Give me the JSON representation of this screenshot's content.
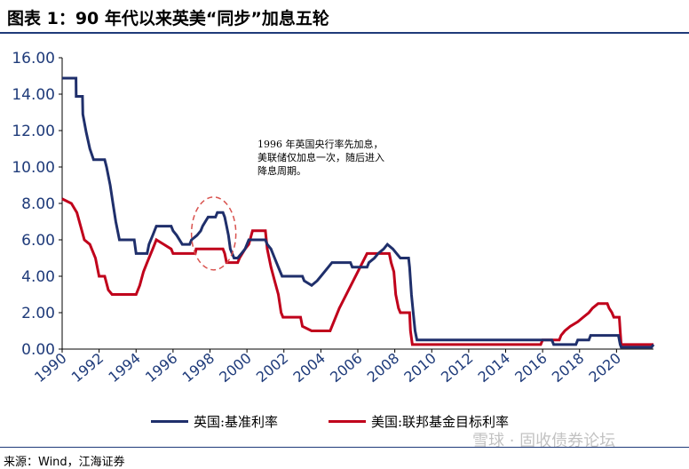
{
  "figure": {
    "title": "图表 1：90 年代以来英美“同步”加息五轮",
    "source": "来源：Wind，江海证券",
    "watermark": "雪球 · 固收债券论坛"
  },
  "annotation": {
    "text": "1996 年英国央行率先加息，美联储仅加息一次，随后进入降息周期。"
  },
  "colors": {
    "uk": "#1f2f6b",
    "us": "#c0001b",
    "ellipse": "#d9534f"
  },
  "chart_data": {
    "type": "line",
    "title": "",
    "xlabel": "",
    "ylabel": "",
    "xlim": [
      1990,
      2022
    ],
    "ylim": [
      0,
      16
    ],
    "x_ticks": [
      "1990",
      "1992",
      "1994",
      "1996",
      "1998",
      "2000",
      "2002",
      "2004",
      "2006",
      "2008",
      "2010",
      "2012",
      "2014",
      "2016",
      "2018",
      "2020"
    ],
    "y_ticks": [
      "0.00",
      "2.00",
      "4.00",
      "6.00",
      "8.00",
      "10.00",
      "12.00",
      "14.00",
      "16.00"
    ],
    "grid": false,
    "legend": "bottom",
    "series": [
      {
        "name": "英国:基准利率",
        "color": "#1f2f6b",
        "points": [
          [
            1990.0,
            14.88
          ],
          [
            1990.75,
            14.88
          ],
          [
            1990.76,
            13.88
          ],
          [
            1991.1,
            13.88
          ],
          [
            1991.12,
            12.9
          ],
          [
            1991.3,
            11.9
          ],
          [
            1991.5,
            11.0
          ],
          [
            1991.7,
            10.4
          ],
          [
            1992.3,
            10.4
          ],
          [
            1992.4,
            10.0
          ],
          [
            1992.6,
            9.0
          ],
          [
            1992.75,
            8.0
          ],
          [
            1992.9,
            7.0
          ],
          [
            1993.1,
            6.0
          ],
          [
            1993.9,
            6.0
          ],
          [
            1994.0,
            5.25
          ],
          [
            1994.6,
            5.25
          ],
          [
            1994.7,
            5.75
          ],
          [
            1994.9,
            6.25
          ],
          [
            1995.1,
            6.75
          ],
          [
            1995.9,
            6.75
          ],
          [
            1996.0,
            6.5
          ],
          [
            1996.2,
            6.25
          ],
          [
            1996.5,
            5.75
          ],
          [
            1996.9,
            5.75
          ],
          [
            1997.0,
            6.0
          ],
          [
            1997.3,
            6.25
          ],
          [
            1997.5,
            6.5
          ],
          [
            1997.6,
            6.75
          ],
          [
            1997.9,
            7.25
          ],
          [
            1998.3,
            7.25
          ],
          [
            1998.4,
            7.5
          ],
          [
            1998.7,
            7.5
          ],
          [
            1998.8,
            7.25
          ],
          [
            1998.9,
            6.75
          ],
          [
            1999.0,
            6.25
          ],
          [
            1999.1,
            5.5
          ],
          [
            1999.3,
            5.0
          ],
          [
            1999.5,
            5.0
          ],
          [
            1999.7,
            5.25
          ],
          [
            1999.9,
            5.5
          ],
          [
            2000.1,
            6.0
          ],
          [
            2000.2,
            6.0
          ],
          [
            2001.0,
            6.0
          ],
          [
            2001.1,
            5.75
          ],
          [
            2001.3,
            5.5
          ],
          [
            2001.5,
            5.0
          ],
          [
            2001.7,
            4.5
          ],
          [
            2001.9,
            4.0
          ],
          [
            2003.0,
            4.0
          ],
          [
            2003.1,
            3.75
          ],
          [
            2003.5,
            3.5
          ],
          [
            2003.8,
            3.75
          ],
          [
            2004.0,
            4.0
          ],
          [
            2004.4,
            4.5
          ],
          [
            2004.6,
            4.75
          ],
          [
            2005.6,
            4.75
          ],
          [
            2005.7,
            4.5
          ],
          [
            2006.5,
            4.5
          ],
          [
            2006.6,
            4.75
          ],
          [
            2006.9,
            5.0
          ],
          [
            2007.1,
            5.25
          ],
          [
            2007.4,
            5.5
          ],
          [
            2007.6,
            5.75
          ],
          [
            2007.9,
            5.5
          ],
          [
            2008.1,
            5.25
          ],
          [
            2008.3,
            5.0
          ],
          [
            2008.75,
            5.0
          ],
          [
            2008.8,
            4.5
          ],
          [
            2008.9,
            3.0
          ],
          [
            2009.0,
            2.0
          ],
          [
            2009.1,
            1.0
          ],
          [
            2009.2,
            0.5
          ],
          [
            2016.5,
            0.5
          ],
          [
            2016.6,
            0.25
          ],
          [
            2017.8,
            0.25
          ],
          [
            2017.9,
            0.5
          ],
          [
            2018.5,
            0.5
          ],
          [
            2018.6,
            0.75
          ],
          [
            2020.1,
            0.75
          ],
          [
            2020.2,
            0.25
          ],
          [
            2020.25,
            0.1
          ],
          [
            2021.9,
            0.1
          ],
          [
            2022.0,
            0.25
          ]
        ]
      },
      {
        "name": "美国:联邦基金目标利率",
        "color": "#c0001b",
        "points": [
          [
            1990.0,
            8.25
          ],
          [
            1990.5,
            8.0
          ],
          [
            1990.8,
            7.5
          ],
          [
            1991.0,
            6.75
          ],
          [
            1991.2,
            6.0
          ],
          [
            1991.5,
            5.75
          ],
          [
            1991.8,
            5.0
          ],
          [
            1992.0,
            4.0
          ],
          [
            1992.3,
            4.0
          ],
          [
            1992.5,
            3.25
          ],
          [
            1992.7,
            3.0
          ],
          [
            1994.0,
            3.0
          ],
          [
            1994.2,
            3.5
          ],
          [
            1994.4,
            4.25
          ],
          [
            1994.6,
            4.75
          ],
          [
            1994.9,
            5.5
          ],
          [
            1995.1,
            6.0
          ],
          [
            1995.5,
            5.75
          ],
          [
            1995.9,
            5.5
          ],
          [
            1996.0,
            5.25
          ],
          [
            1997.2,
            5.25
          ],
          [
            1997.25,
            5.5
          ],
          [
            1998.7,
            5.5
          ],
          [
            1998.8,
            5.25
          ],
          [
            1998.9,
            4.75
          ],
          [
            1999.5,
            4.75
          ],
          [
            1999.6,
            5.0
          ],
          [
            1999.9,
            5.5
          ],
          [
            2000.1,
            5.75
          ],
          [
            2000.3,
            6.5
          ],
          [
            2001.0,
            6.5
          ],
          [
            2001.1,
            5.5
          ],
          [
            2001.3,
            4.5
          ],
          [
            2001.5,
            3.75
          ],
          [
            2001.7,
            3.0
          ],
          [
            2001.85,
            2.0
          ],
          [
            2001.95,
            1.75
          ],
          [
            2002.9,
            1.75
          ],
          [
            2003.0,
            1.25
          ],
          [
            2003.5,
            1.0
          ],
          [
            2004.5,
            1.0
          ],
          [
            2005.0,
            2.25
          ],
          [
            2005.5,
            3.25
          ],
          [
            2006.0,
            4.25
          ],
          [
            2006.5,
            5.25
          ],
          [
            2007.7,
            5.25
          ],
          [
            2007.8,
            4.75
          ],
          [
            2007.95,
            4.25
          ],
          [
            2008.05,
            3.0
          ],
          [
            2008.2,
            2.25
          ],
          [
            2008.3,
            2.0
          ],
          [
            2008.8,
            2.0
          ],
          [
            2008.85,
            1.0
          ],
          [
            2008.95,
            0.25
          ],
          [
            2015.9,
            0.25
          ],
          [
            2016.0,
            0.5
          ],
          [
            2016.9,
            0.5
          ],
          [
            2017.0,
            0.75
          ],
          [
            2017.2,
            1.0
          ],
          [
            2017.5,
            1.25
          ],
          [
            2017.9,
            1.5
          ],
          [
            2018.2,
            1.75
          ],
          [
            2018.5,
            2.0
          ],
          [
            2018.7,
            2.25
          ],
          [
            2019.0,
            2.5
          ],
          [
            2019.5,
            2.5
          ],
          [
            2019.6,
            2.25
          ],
          [
            2019.75,
            2.0
          ],
          [
            2019.85,
            1.75
          ],
          [
            2020.15,
            1.75
          ],
          [
            2020.2,
            1.0
          ],
          [
            2020.25,
            0.25
          ],
          [
            2022.0,
            0.25
          ]
        ]
      }
    ]
  }
}
